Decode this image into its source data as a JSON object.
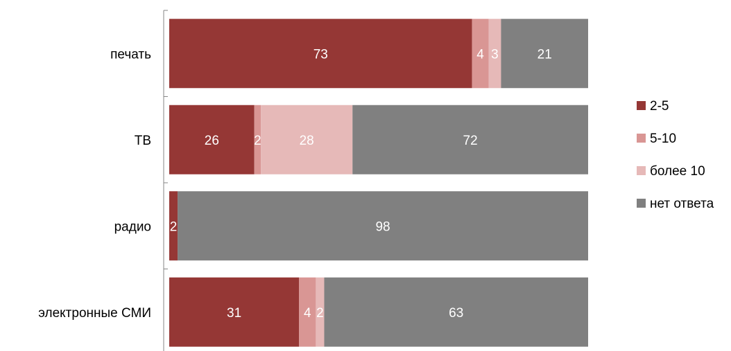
{
  "chart_data": {
    "type": "bar",
    "orientation": "horizontal",
    "stacked": true,
    "percent_stacked": true,
    "categories": [
      "печать",
      "ТВ",
      "радио",
      "электронные СМИ"
    ],
    "series": [
      {
        "name": "2-5",
        "color": "#953735",
        "values": [
          73,
          26,
          2,
          31
        ]
      },
      {
        "name": "5-10",
        "color": "#D99694",
        "values": [
          4,
          2,
          0,
          4
        ]
      },
      {
        "name": "более 10",
        "color": "#E6B9B8",
        "values": [
          3,
          28,
          0,
          2
        ]
      },
      {
        "name": "нет ответа",
        "color": "#808080",
        "values": [
          21,
          72,
          98,
          63
        ]
      }
    ],
    "data_labels_visible": true,
    "gridlines": false,
    "legend_position": "right"
  }
}
